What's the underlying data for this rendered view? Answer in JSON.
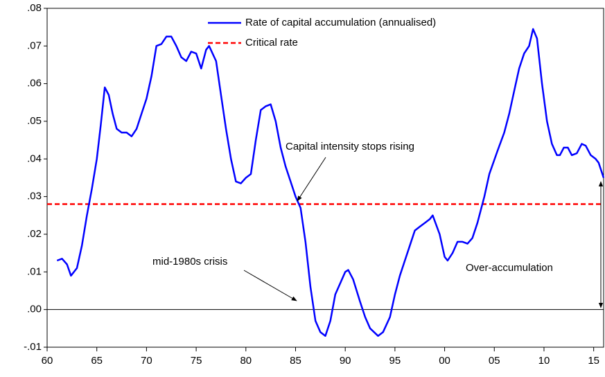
{
  "chart_data": {
    "type": "line",
    "x": [
      1961,
      1961.5,
      1962,
      1962.4,
      1963,
      1963.5,
      1964,
      1964.5,
      1965,
      1965.4,
      1965.8,
      1966.2,
      1966.6,
      1967,
      1967.5,
      1968,
      1968.5,
      1969,
      1969.5,
      1970,
      1970.5,
      1971,
      1971.5,
      1972,
      1972.5,
      1973,
      1973.5,
      1974,
      1974.5,
      1975,
      1975.5,
      1976,
      1976.3,
      1977,
      1977.5,
      1978,
      1978.5,
      1979,
      1979.5,
      1980,
      1980.5,
      1981,
      1981.5,
      1982,
      1982.5,
      1983,
      1983.5,
      1984,
      1984.5,
      1985,
      1985.5,
      1986,
      1986.5,
      1987,
      1987.5,
      1988,
      1988.5,
      1989,
      1989.5,
      1990,
      1990.3,
      1990.8,
      1991.5,
      1992,
      1992.5,
      1993.3,
      1993.8,
      1994.5,
      1995,
      1995.5,
      1996,
      1996.5,
      1997,
      1997.5,
      1998,
      1998.5,
      1998.8,
      1999.5,
      2000,
      2000.3,
      2000.8,
      2001.3,
      2001.8,
      2002.3,
      2002.8,
      2003.3,
      2004,
      2004.5,
      2005.3,
      2006,
      2006.5,
      2007,
      2007.5,
      2008,
      2008.5,
      2008.9,
      2009.3,
      2009.8,
      2010.3,
      2010.8,
      2011.3,
      2011.6,
      2012,
      2012.4,
      2012.8,
      2013.3,
      2013.8,
      2014.2,
      2014.7,
      2015.2,
      2015.5,
      2016
    ],
    "series": [
      {
        "name": "Rate of capital accumulation (annualised)",
        "color": "#0000ff",
        "values": [
          0.013,
          0.0135,
          0.012,
          0.009,
          0.011,
          0.017,
          0.025,
          0.032,
          0.04,
          0.049,
          0.059,
          0.057,
          0.052,
          0.048,
          0.047,
          0.047,
          0.046,
          0.048,
          0.052,
          0.056,
          0.062,
          0.07,
          0.0705,
          0.0725,
          0.0725,
          0.07,
          0.067,
          0.066,
          0.0685,
          0.068,
          0.064,
          0.069,
          0.07,
          0.066,
          0.057,
          0.048,
          0.04,
          0.034,
          0.0335,
          0.035,
          0.036,
          0.045,
          0.053,
          0.054,
          0.0545,
          0.05,
          0.043,
          0.038,
          0.034,
          0.03,
          0.027,
          0.018,
          0.006,
          -0.003,
          -0.006,
          -0.007,
          -0.003,
          0.004,
          0.007,
          0.01,
          0.0105,
          0.008,
          0.002,
          -0.002,
          -0.005,
          -0.007,
          -0.006,
          -0.002,
          0.004,
          0.009,
          0.013,
          0.017,
          0.021,
          0.022,
          0.023,
          0.024,
          0.025,
          0.02,
          0.014,
          0.013,
          0.015,
          0.018,
          0.018,
          0.0175,
          0.019,
          0.023,
          0.03,
          0.036,
          0.042,
          0.047,
          0.052,
          0.058,
          0.064,
          0.068,
          0.07,
          0.0745,
          0.072,
          0.06,
          0.05,
          0.044,
          0.041,
          0.041,
          0.043,
          0.043,
          0.041,
          0.0415,
          0.044,
          0.0435,
          0.041,
          0.04,
          0.039,
          0.035
        ]
      }
    ],
    "reference_line": {
      "name": "Critical rate",
      "value": 0.028,
      "color": "#ff0000"
    },
    "xlim": [
      1960,
      2016
    ],
    "xticks": [
      {
        "value": 1960,
        "label": "60"
      },
      {
        "value": 1965,
        "label": "65"
      },
      {
        "value": 1970,
        "label": "70"
      },
      {
        "value": 1975,
        "label": "75"
      },
      {
        "value": 1980,
        "label": "80"
      },
      {
        "value": 1985,
        "label": "85"
      },
      {
        "value": 1990,
        "label": "90"
      },
      {
        "value": 1995,
        "label": "95"
      },
      {
        "value": 2000,
        "label": "00"
      },
      {
        "value": 2005,
        "label": "05"
      },
      {
        "value": 2010,
        "label": "10"
      },
      {
        "value": 2015,
        "label": "15"
      }
    ],
    "ylim": [
      -0.01,
      0.08
    ],
    "yticks": [
      {
        "value": -0.01,
        "label": "-.01"
      },
      {
        "value": 0,
        "label": ".00"
      },
      {
        "value": 0.01,
        "label": ".01"
      },
      {
        "value": 0.02,
        "label": ".02"
      },
      {
        "value": 0.03,
        "label": ".03"
      },
      {
        "value": 0.04,
        "label": ".04"
      },
      {
        "value": 0.05,
        "label": ".05"
      },
      {
        "value": 0.06,
        "label": ".06"
      },
      {
        "value": 0.07,
        "label": ".07"
      },
      {
        "value": 0.08,
        "label": ".08"
      }
    ],
    "annotations": [
      {
        "text": "Capital intensity stops rising"
      },
      {
        "text": "mid-1980s crisis"
      },
      {
        "text": "Over-accumulation"
      }
    ]
  }
}
